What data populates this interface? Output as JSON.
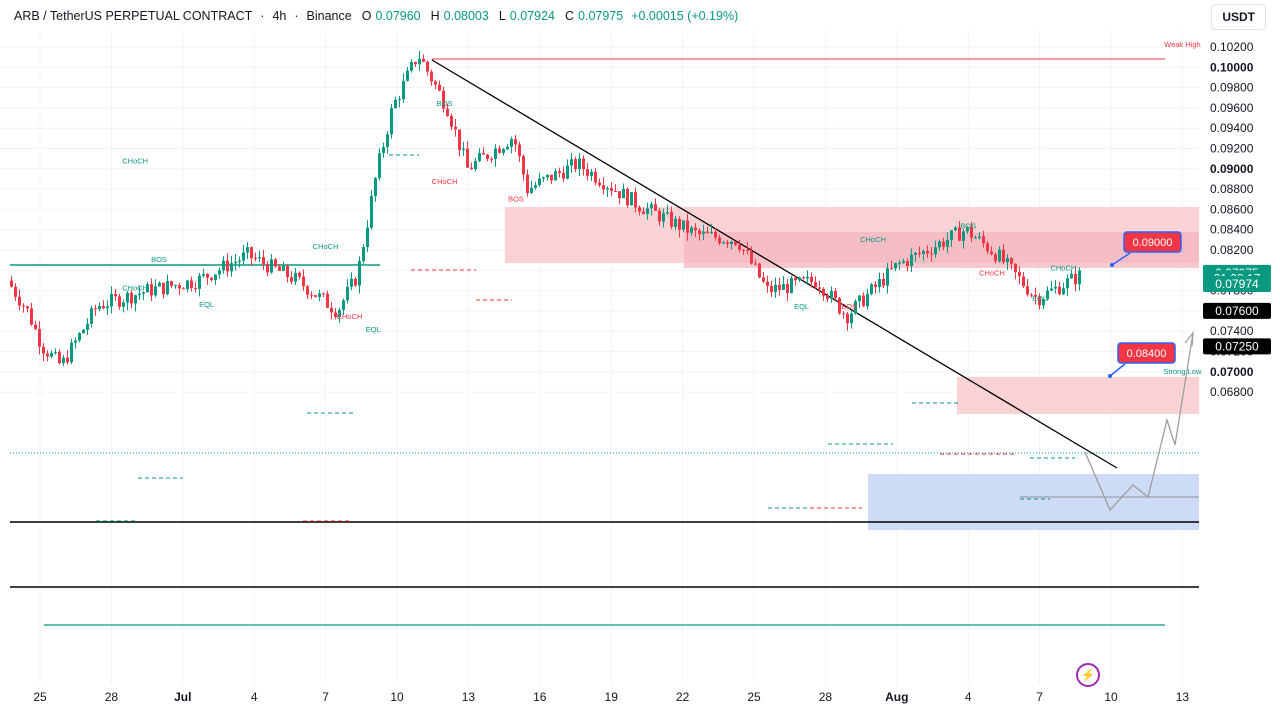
{
  "header": {
    "symbol": "ARB / TetherUS PERPETUAL CONTRACT",
    "timeframe": "4h",
    "exchange": "Binance",
    "o_label": "O",
    "o_value": "0.07960",
    "h_label": "H",
    "h_value": "0.08003",
    "l_label": "L",
    "l_value": "0.07924",
    "c_label": "C",
    "c_value": "0.07975",
    "change": "+0.00015 (+0.19%)"
  },
  "currency": "USDT",
  "colors": {
    "up": "#089981",
    "down": "#f23645",
    "supply_zone": "#f7c9cd",
    "demand_zone": "#c4d5f5",
    "trendline": "#000000",
    "projection": "#9e9e9e"
  },
  "chart_data": {
    "type": "candlestick",
    "y_axis": {
      "range": [
        0.0668,
        0.1025
      ],
      "ticks": [
        "0.10200",
        "0.10000",
        "0.09800",
        "0.09600",
        "0.09400",
        "0.09200",
        "0.09000",
        "0.08800",
        "0.08600",
        "0.08400",
        "0.08200",
        "0.08000",
        "0.07800",
        "0.07600",
        "0.07400",
        "0.07200",
        "0.07000",
        "0.06800"
      ],
      "bold_ticks": [
        "0.10000",
        "0.09000",
        "0.07000"
      ]
    },
    "x_axis": {
      "labels": [
        "25",
        "28",
        "Jul",
        "4",
        "7",
        "10",
        "13",
        "16",
        "19",
        "22",
        "25",
        "28",
        "Aug",
        "4",
        "7",
        "10",
        "13"
      ]
    },
    "price_badges": [
      {
        "label": "0.07975",
        "value": 0.07975,
        "style": "green"
      },
      {
        "label": "01:08:17",
        "value": 0.0792,
        "style": "green"
      },
      {
        "label": "0.07974",
        "value": 0.07865,
        "style": "green"
      },
      {
        "label": "0.07600",
        "value": 0.076,
        "style": "black"
      },
      {
        "label": "0.07250",
        "value": 0.0725,
        "style": "black"
      }
    ],
    "levels": [
      {
        "name": "Weak High",
        "value": 0.1013
      },
      {
        "name": "Strong Low",
        "value": 0.0704
      },
      {
        "name": "Support",
        "value": 0.076
      },
      {
        "name": "Support",
        "value": 0.0725
      }
    ],
    "targets": [
      {
        "label": "0.09000",
        "value": 0.09
      },
      {
        "label": "0.08400",
        "value": 0.084
      }
    ],
    "structure_labels": [
      {
        "text": "Weak High",
        "date": "Aug 12",
        "price": 0.102
      },
      {
        "text": "Strong Low",
        "date": "Aug 12",
        "price": 0.0698
      },
      {
        "text": "CHoCH",
        "date": "Jun 29",
        "price": 0.0905
      },
      {
        "text": "BOS",
        "date": "Jul 12",
        "price": 0.0962
      },
      {
        "text": "CHoCH",
        "date": "Jul 12",
        "price": 0.0885
      },
      {
        "text": "BOS",
        "date": "Jul 15",
        "price": 0.0868
      },
      {
        "text": "BOS",
        "date": "Jun 30",
        "price": 0.0808
      },
      {
        "text": "CHoCH",
        "date": "Jun 29",
        "price": 0.078
      },
      {
        "text": "EQL",
        "date": "Jul 2",
        "price": 0.0764
      },
      {
        "text": "CHoCH",
        "date": "Jul 7",
        "price": 0.0821
      },
      {
        "text": "CHoCH",
        "date": "Jul 8",
        "price": 0.0752
      },
      {
        "text": "EQL",
        "date": "Jul 9",
        "price": 0.0739
      },
      {
        "text": "CHoCH",
        "date": "Jul 30",
        "price": 0.0828
      },
      {
        "text": "EQL",
        "date": "Jul 27",
        "price": 0.0762
      },
      {
        "text": "BOS",
        "date": "Jul 29",
        "price": 0.0762
      },
      {
        "text": "BOS",
        "date": "Aug 3",
        "price": 0.0841
      },
      {
        "text": "CHoCH",
        "date": "Aug 4",
        "price": 0.0795
      },
      {
        "text": "CHoCH",
        "date": "Aug 7",
        "price": 0.08
      },
      {
        "text": "EQL",
        "date": "Aug 6",
        "price": 0.077
      }
    ],
    "key_points": [
      {
        "date": "Jun 26",
        "price": 0.0706
      },
      {
        "date": "Jul 11",
        "price": 0.1013
      },
      {
        "date": "Jul 15",
        "price": 0.0932
      },
      {
        "date": "Jul 29",
        "price": 0.0755
      },
      {
        "date": "Aug 3",
        "price": 0.084
      },
      {
        "date": "Aug 6",
        "price": 0.0772
      },
      {
        "date": "Aug 8",
        "price": 0.07975
      }
    ]
  }
}
